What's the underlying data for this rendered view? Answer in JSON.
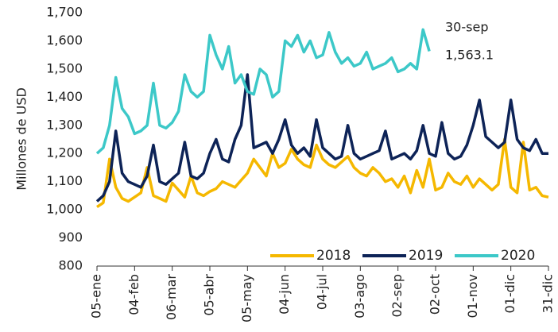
{
  "chart_data": {
    "type": "line",
    "y_label": "Millones de USD",
    "annotations": [
      "30-sep",
      "1,563.1"
    ],
    "categories": [
      "05-ene",
      null,
      null,
      null,
      null,
      null,
      "04-feb",
      null,
      null,
      null,
      null,
      null,
      "06-mar",
      null,
      null,
      null,
      null,
      null,
      "05-abr",
      null,
      null,
      null,
      null,
      null,
      "05-may",
      null,
      null,
      null,
      null,
      null,
      "04-jun",
      null,
      null,
      null,
      null,
      null,
      "04-jul",
      null,
      null,
      null,
      null,
      null,
      "03-ago",
      null,
      null,
      null,
      null,
      null,
      "02-sep",
      null,
      null,
      null,
      null,
      null,
      "02-oct",
      null,
      null,
      null,
      null,
      null,
      "01-nov",
      null,
      null,
      null,
      null,
      null,
      "01-dic",
      null,
      null,
      null,
      null,
      null,
      "31-dic"
    ],
    "series": [
      {
        "name": "2018",
        "color": "#f5b800",
        "values": [
          1010,
          1025,
          1180,
          1080,
          1040,
          1030,
          1045,
          1060,
          1150,
          1050,
          1040,
          1030,
          1095,
          1070,
          1045,
          1120,
          1060,
          1050,
          1065,
          1075,
          1100,
          1090,
          1080,
          1105,
          1130,
          1180,
          1150,
          1120,
          1200,
          1150,
          1165,
          1215,
          1180,
          1160,
          1150,
          1230,
          1180,
          1160,
          1150,
          1170,
          1190,
          1150,
          1130,
          1120,
          1150,
          1130,
          1100,
          1110,
          1080,
          1120,
          1060,
          1140,
          1080,
          1180,
          1070,
          1080,
          1130,
          1100,
          1090,
          1120,
          1080,
          1110,
          1090,
          1070,
          1090,
          1250,
          1080,
          1060,
          1240,
          1070,
          1080,
          1050,
          1045
        ]
      },
      {
        "name": "2019",
        "color": "#0d2357",
        "values": [
          1030,
          1050,
          1100,
          1280,
          1130,
          1100,
          1090,
          1080,
          1120,
          1230,
          1100,
          1090,
          1110,
          1130,
          1240,
          1120,
          1110,
          1130,
          1200,
          1250,
          1180,
          1170,
          1250,
          1300,
          1480,
          1220,
          1230,
          1240,
          1200,
          1250,
          1320,
          1230,
          1200,
          1220,
          1190,
          1320,
          1220,
          1200,
          1180,
          1190,
          1300,
          1200,
          1180,
          1190,
          1200,
          1210,
          1280,
          1180,
          1190,
          1200,
          1180,
          1210,
          1300,
          1200,
          1190,
          1310,
          1200,
          1180,
          1190,
          1230,
          1300,
          1390,
          1260,
          1240,
          1220,
          1240,
          1390,
          1250,
          1220,
          1210,
          1250,
          1200,
          1200
        ]
      },
      {
        "name": "2020",
        "color": "#3cc8c8",
        "values": [
          1200,
          1220,
          1300,
          1470,
          1360,
          1330,
          1270,
          1280,
          1300,
          1450,
          1300,
          1290,
          1310,
          1350,
          1480,
          1420,
          1400,
          1420,
          1620,
          1550,
          1500,
          1580,
          1450,
          1480,
          1420,
          1410,
          1500,
          1480,
          1400,
          1420,
          1600,
          1580,
          1620,
          1560,
          1600,
          1540,
          1550,
          1630,
          1560,
          1520,
          1540,
          1510,
          1520,
          1560,
          1500,
          1510,
          1520,
          1540,
          1490,
          1500,
          1520,
          1500,
          1640,
          1563.1,
          null,
          null,
          null,
          null,
          null,
          null,
          null,
          null,
          null,
          null,
          null,
          null,
          null,
          null,
          null,
          null,
          null,
          null,
          null
        ]
      }
    ],
    "ylim": [
      800,
      1700
    ],
    "yticks": [
      800,
      900,
      {
        "value": 1000,
        "label": "1,000"
      },
      {
        "value": 1100,
        "label": "1,100"
      },
      {
        "value": 1200,
        "label": "1,200"
      },
      {
        "value": 1300,
        "label": "1,300"
      },
      {
        "value": 1400,
        "label": "1,400"
      },
      {
        "value": 1500,
        "label": "1,500"
      },
      {
        "value": 1600,
        "label": "1,600"
      },
      {
        "value": 1700,
        "label": "1,700"
      }
    ]
  }
}
